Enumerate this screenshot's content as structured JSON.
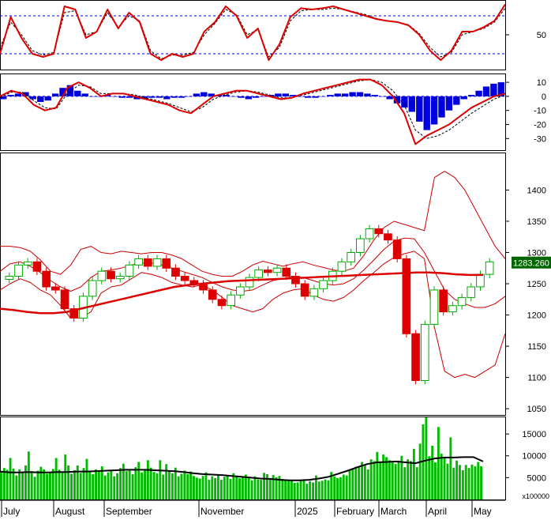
{
  "chart_data": [
    {
      "type": "line",
      "title": "",
      "y_ticks": [
        50
      ],
      "reference_lines": [
        80,
        20
      ],
      "ylim": [
        0,
        100
      ],
      "series": [
        {
          "values": [
            20,
            78,
            45,
            20,
            15,
            20,
            95,
            90,
            45,
            55,
            90,
            60,
            85,
            70,
            20,
            10,
            20,
            15,
            20,
            55,
            70,
            95,
            80,
            45,
            60,
            10,
            35,
            78,
            92,
            90,
            92,
            95,
            90,
            85,
            80,
            75,
            72,
            70,
            65,
            50,
            25,
            10,
            25,
            55,
            55,
            62,
            72,
            98
          ]
        },
        {
          "values": [
            30,
            70,
            50,
            25,
            18,
            22,
            85,
            88,
            50,
            55,
            85,
            62,
            80,
            72,
            25,
            12,
            18,
            18,
            22,
            50,
            68,
            90,
            82,
            50,
            58,
            15,
            30,
            72,
            88,
            90,
            90,
            92,
            90,
            86,
            82,
            76,
            72,
            70,
            66,
            52,
            30,
            15,
            22,
            50,
            55,
            60,
            70,
            92
          ]
        }
      ]
    },
    {
      "type": "line",
      "title": "",
      "y_ticks": [
        10,
        0,
        -10,
        -20,
        -30
      ],
      "ylim": [
        -36,
        14
      ],
      "series": [
        {
          "values": [
            0,
            4,
            2,
            -6,
            -10,
            -8,
            6,
            10,
            6,
            0,
            2,
            2,
            0,
            -2,
            -4,
            -6,
            -10,
            -12,
            -6,
            0,
            2,
            4,
            4,
            2,
            0,
            -2,
            -1,
            2,
            4,
            6,
            8,
            10,
            12,
            12,
            8,
            0,
            -12,
            -34,
            -28,
            -24,
            -20,
            -14,
            -8,
            -4,
            0,
            2
          ]
        },
        {
          "values": [
            -1,
            3,
            3,
            -3,
            -8,
            -9,
            2,
            8,
            7,
            2,
            2,
            2,
            1,
            -1,
            -3,
            -5,
            -8,
            -11,
            -8,
            -2,
            1,
            3,
            4,
            3,
            1,
            -1,
            -1,
            1,
            3,
            5,
            7,
            9,
            11,
            12,
            10,
            4,
            -6,
            -24,
            -30,
            -28,
            -24,
            -18,
            -12,
            -7,
            -2,
            1
          ]
        }
      ],
      "histogram": [
        -2,
        1,
        2,
        3,
        -2,
        -4,
        -3,
        2,
        6,
        8,
        4,
        2,
        0,
        0,
        1,
        0,
        -1,
        -1,
        -2,
        -2,
        -1,
        -1,
        -2,
        -1,
        -1,
        0,
        2,
        3,
        2,
        1,
        1,
        0,
        -1,
        -2,
        -1,
        0,
        1,
        2,
        2,
        1,
        0,
        -1,
        -1,
        0,
        1,
        2,
        2,
        3,
        3,
        2,
        1,
        0,
        -2,
        -5,
        -8,
        -11,
        -18,
        -24,
        -20,
        -15,
        -10,
        -6,
        -2,
        1,
        4,
        7,
        9,
        10
      ]
    },
    {
      "type": "line",
      "title": "",
      "last_value_label": "1283.260",
      "y_ticks": [
        1400,
        1350,
        1300,
        1250,
        1200,
        1150,
        1100,
        1050
      ],
      "ylim": [
        1040,
        1460
      ],
      "series": [
        {
          "values": [
            1262,
            1280,
            1285,
            1270,
            1245,
            1240,
            1210,
            1195,
            1230,
            1255,
            1270,
            1258,
            1262,
            1280,
            1290,
            1278,
            1290,
            1275,
            1262,
            1255,
            1250,
            1240,
            1225,
            1215,
            1232,
            1245,
            1260,
            1272,
            1268,
            1275,
            1262,
            1250,
            1230,
            1242,
            1255,
            1270,
            1285,
            1300,
            1322,
            1338,
            1330,
            1320,
            1290,
            1170,
            1095,
            1185,
            1240,
            1205,
            1215,
            1228,
            1245,
            1265,
            1285
          ]
        },
        {
          "values": [
            1210,
            1208,
            1205,
            1203,
            1203,
            1205,
            1210,
            1215,
            1220,
            1225,
            1230,
            1235,
            1240,
            1245,
            1248,
            1250,
            1252,
            1254,
            1255,
            1256,
            1257,
            1258,
            1259,
            1260,
            1261,
            1262,
            1263,
            1264,
            1265,
            1266,
            1267,
            1268,
            1268,
            1267,
            1265,
            1264,
            1264
          ]
        },
        {
          "values": [
            1270,
            1282,
            1285,
            1278,
            1268,
            1255,
            1245,
            1238,
            1245,
            1260,
            1270,
            1272,
            1275,
            1280,
            1283,
            1283,
            1280,
            1275,
            1270,
            1265,
            1260,
            1252,
            1245,
            1240,
            1238,
            1240,
            1248,
            1255,
            1258,
            1262,
            1260,
            1255,
            1250,
            1248,
            1250,
            1258,
            1272,
            1288,
            1305,
            1318,
            1323,
            1322,
            1300,
            1270,
            1240,
            1225,
            1218,
            1212,
            1212,
            1218,
            1230
          ]
        },
        {
          "values": [
            1310,
            1310,
            1308,
            1302,
            1288,
            1270,
            1265,
            1280,
            1305,
            1310,
            1300,
            1298,
            1302,
            1300,
            1298,
            1300,
            1300,
            1296,
            1290,
            1280,
            1270,
            1265,
            1262,
            1262,
            1270,
            1280,
            1286,
            1282,
            1278,
            1282,
            1285,
            1280,
            1276,
            1272,
            1270,
            1275,
            1295,
            1320,
            1340,
            1350,
            1345,
            1340,
            1335,
            1420,
            1430,
            1420,
            1400,
            1370,
            1340,
            1310,
            1290
          ]
        },
        {
          "values": [
            1240,
            1250,
            1258,
            1252,
            1240,
            1232,
            1215,
            1195,
            1195,
            1205,
            1235,
            1245,
            1248,
            1258,
            1268,
            1265,
            1260,
            1252,
            1248,
            1245,
            1248,
            1240,
            1228,
            1215,
            1210,
            1205,
            1210,
            1225,
            1235,
            1240,
            1242,
            1232,
            1225,
            1222,
            1228,
            1240,
            1255,
            1268,
            1282,
            1292,
            1298,
            1302,
            1290,
            1180,
            1110,
            1100,
            1105,
            1100,
            1110,
            1120,
            1170
          ]
        }
      ]
    },
    {
      "type": "bar",
      "title": "",
      "unit_label": "x100000",
      "y_ticks": [
        15000,
        10000,
        5000
      ],
      "ylim": [
        0,
        19000
      ],
      "x_labels": [
        "July",
        "August",
        "September",
        "November",
        "2025",
        "February",
        "March",
        "April",
        "May"
      ],
      "values": [
        6400,
        7200,
        6800,
        9500,
        7100,
        5500,
        6900,
        6200,
        7800,
        11000,
        6500,
        5200,
        6600,
        7500,
        6900,
        5900,
        6300,
        7000,
        9500,
        6800,
        6400,
        10300,
        7800,
        5900,
        6700,
        7800,
        6100,
        7200,
        9300,
        6600,
        5800,
        6900,
        6400,
        7600,
        5500,
        6200,
        6800,
        5300,
        6000,
        7200,
        8200,
        6500,
        6900,
        5800,
        7400,
        8600,
        6200,
        6800,
        9000,
        7300,
        6300,
        6000,
        9000,
        5700,
        8100,
        6700,
        6000,
        7300,
        5300,
        5900,
        6600,
        5800,
        6400,
        5400,
        5000,
        4800,
        5400,
        6200,
        4500,
        5300,
        4900,
        5600,
        4500,
        5200,
        5600,
        4700,
        6000,
        5200,
        4900,
        5300,
        5700,
        4900,
        4400,
        5300,
        4600,
        4500,
        6100,
        5800,
        4900,
        5600,
        5100,
        5400,
        4700,
        4400,
        4300,
        4400,
        3800,
        3900,
        4300,
        4500,
        3600,
        4200,
        3900,
        5500,
        4100,
        4300,
        4600,
        4400,
        6300,
        5300,
        4900,
        5100,
        5700,
        5500,
        6800,
        7100,
        7500,
        7400,
        8600,
        7900,
        6900,
        9200,
        8800,
        10900,
        8600,
        10300,
        9700,
        9000,
        8600,
        8100,
        8900,
        10000,
        7400,
        9200,
        8800,
        11600,
        7400,
        12800,
        17200,
        18800,
        9900,
        12300,
        8500,
        16600,
        10500,
        9500,
        8200,
        14200,
        7300,
        8900,
        7900,
        6700,
        7900,
        7200,
        8000,
        7600,
        8600,
        7600
      ],
      "moving_average": [
        6400,
        6200,
        6200,
        6300,
        6200,
        6200,
        6300,
        6300,
        6400,
        6400,
        6500,
        6600,
        6700,
        6800,
        6800,
        6800,
        6700,
        6600,
        6500,
        6300,
        6000,
        5800,
        5700,
        5600,
        5400,
        5200,
        5000,
        4800,
        4700,
        4500,
        4400,
        4400,
        4500,
        4800,
        5200,
        5900,
        6600,
        7400,
        8100,
        8500,
        8600,
        8700,
        8500,
        8300,
        8900,
        9400,
        9600,
        9600,
        9700,
        9700,
        8700
      ]
    }
  ]
}
